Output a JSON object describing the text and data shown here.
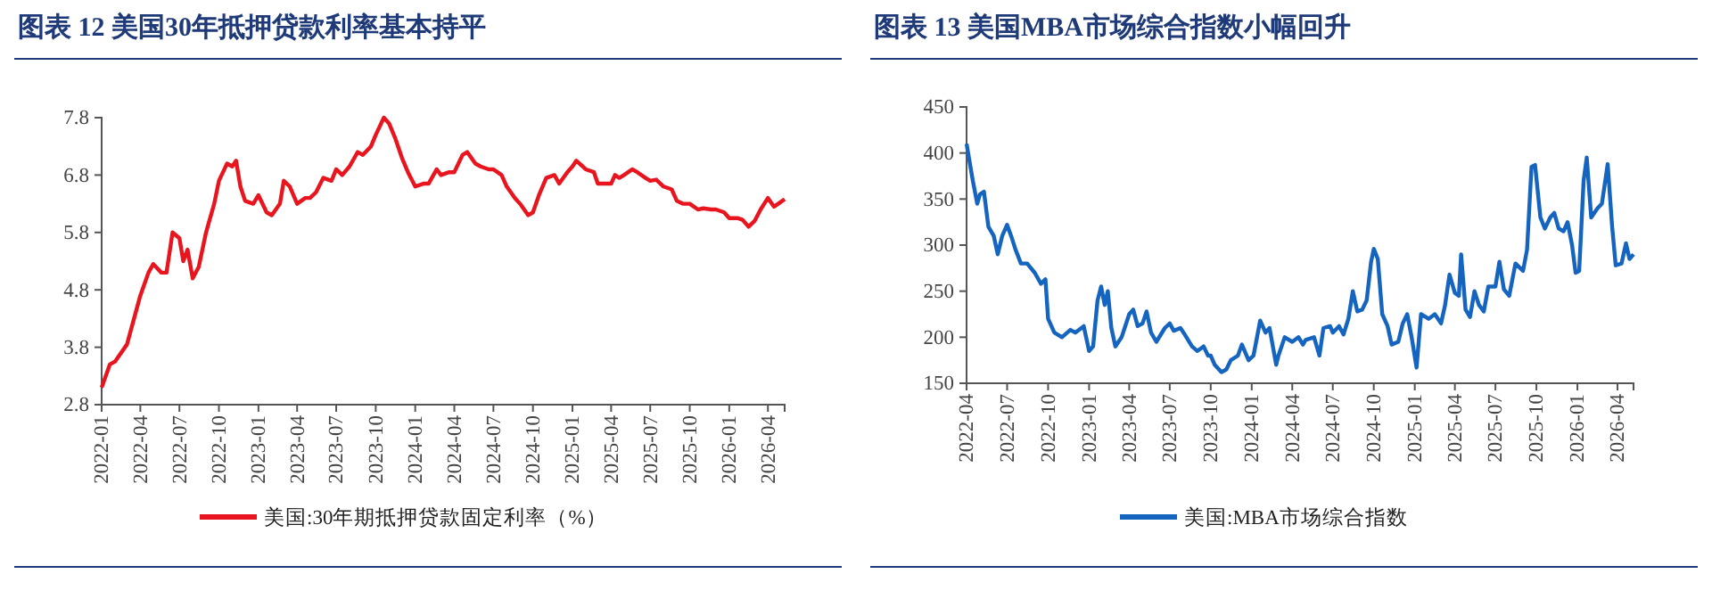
{
  "chart_data": [
    {
      "type": "line",
      "title": "图表 12   美国30年抵押贷款利率基本持平",
      "legend": "bottom",
      "grid": false,
      "xlim": [
        "2022-01-01",
        "2026-05-10"
      ],
      "ylim": [
        2.8,
        7.8
      ],
      "yticks": [
        2.8,
        3.8,
        4.8,
        5.8,
        6.8,
        7.8
      ],
      "xticks": [
        "2022-01",
        "2022-04",
        "2022-07",
        "2022-10",
        "2023-01",
        "2023-04",
        "2023-07",
        "2023-10",
        "2024-01",
        "2024-04",
        "2024-07",
        "2024-10",
        "2025-01",
        "2025-04",
        "2025-07",
        "2025-10",
        "2026-01",
        "2026-04"
      ],
      "x": [
        "2022-01-01",
        "2022-01-20",
        "2022-02-01",
        "2022-03-01",
        "2022-04-01",
        "2022-04-20",
        "2022-05-01",
        "2022-05-20",
        "2022-06-01",
        "2022-06-15",
        "2022-07-01",
        "2022-07-10",
        "2022-07-20",
        "2022-08-01",
        "2022-08-15",
        "2022-09-01",
        "2022-09-20",
        "2022-10-01",
        "2022-10-20",
        "2022-11-01",
        "2022-11-10",
        "2022-11-20",
        "2022-12-01",
        "2022-12-20",
        "2023-01-01",
        "2023-01-20",
        "2023-02-01",
        "2023-02-20",
        "2023-03-01",
        "2023-03-15",
        "2023-04-01",
        "2023-04-20",
        "2023-05-01",
        "2023-05-15",
        "2023-06-01",
        "2023-06-20",
        "2023-07-01",
        "2023-07-15",
        "2023-08-01",
        "2023-08-20",
        "2023-09-01",
        "2023-09-20",
        "2023-10-01",
        "2023-10-20",
        "2023-11-01",
        "2023-11-15",
        "2023-12-01",
        "2023-12-15",
        "2024-01-01",
        "2024-01-20",
        "2024-02-01",
        "2024-02-20",
        "2024-03-01",
        "2024-03-20",
        "2024-04-01",
        "2024-04-20",
        "2024-05-01",
        "2024-05-20",
        "2024-06-01",
        "2024-06-20",
        "2024-07-01",
        "2024-07-20",
        "2024-08-01",
        "2024-08-20",
        "2024-09-01",
        "2024-09-20",
        "2024-10-01",
        "2024-10-15",
        "2024-11-01",
        "2024-11-20",
        "2024-12-01",
        "2024-12-20",
        "2025-01-01",
        "2025-01-10",
        "2025-01-25",
        "2025-02-01",
        "2025-02-20",
        "2025-03-01",
        "2025-03-20",
        "2025-04-01",
        "2025-04-10",
        "2025-04-20",
        "2025-05-01",
        "2025-05-20",
        "2025-06-01",
        "2025-06-20",
        "2025-07-01",
        "2025-07-15",
        "2025-08-01",
        "2025-08-20",
        "2025-09-01",
        "2025-09-15",
        "2025-10-01",
        "2025-10-20",
        "2025-11-01",
        "2025-11-20",
        "2025-12-01",
        "2025-12-20",
        "2026-01-01",
        "2026-01-20",
        "2026-02-01",
        "2026-02-15",
        "2026-03-01",
        "2026-03-15",
        "2026-04-01",
        "2026-04-15",
        "2026-04-25",
        "2026-05-10"
      ],
      "series": [
        {
          "name": "美国:30年期抵押贷款固定利率（%）",
          "color": "#e8141e",
          "values": [
            3.1,
            3.5,
            3.55,
            3.85,
            4.7,
            5.1,
            5.25,
            5.1,
            5.1,
            5.8,
            5.7,
            5.3,
            5.5,
            5.0,
            5.2,
            5.8,
            6.3,
            6.7,
            7.0,
            6.95,
            7.05,
            6.6,
            6.35,
            6.3,
            6.45,
            6.15,
            6.1,
            6.3,
            6.7,
            6.6,
            6.3,
            6.4,
            6.4,
            6.5,
            6.75,
            6.7,
            6.9,
            6.8,
            6.95,
            7.2,
            7.15,
            7.3,
            7.5,
            7.8,
            7.7,
            7.45,
            7.1,
            6.85,
            6.6,
            6.65,
            6.65,
            6.9,
            6.8,
            6.85,
            6.85,
            7.15,
            7.2,
            7.0,
            6.95,
            6.9,
            6.9,
            6.8,
            6.6,
            6.4,
            6.3,
            6.1,
            6.15,
            6.45,
            6.75,
            6.8,
            6.65,
            6.85,
            6.95,
            7.05,
            6.95,
            6.9,
            6.85,
            6.65,
            6.65,
            6.65,
            6.8,
            6.75,
            6.8,
            6.9,
            6.85,
            6.75,
            6.7,
            6.72,
            6.6,
            6.55,
            6.35,
            6.3,
            6.3,
            6.2,
            6.22,
            6.2,
            6.2,
            6.15,
            6.05,
            6.05,
            6.02,
            5.9,
            6.0,
            6.2,
            6.4,
            6.25,
            6.3,
            6.38
          ]
        }
      ]
    },
    {
      "type": "line",
      "title": "图表 13   美国MBA市场综合指数小幅回升",
      "legend": "bottom",
      "grid": false,
      "xlim": [
        "2022-04-01",
        "2026-05-07"
      ],
      "ylim": [
        150,
        450
      ],
      "yticks": [
        150,
        200,
        250,
        300,
        350,
        400,
        450
      ],
      "xticks": [
        "2022-04",
        "2022-07",
        "2022-10",
        "2023-01",
        "2023-04",
        "2023-07",
        "2023-10",
        "2024-01",
        "2024-04",
        "2024-07",
        "2024-10",
        "2025-01",
        "2025-04",
        "2025-07",
        "2025-10",
        "2026-01",
        "2026-04"
      ],
      "x": [
        "2022-04-01",
        "2022-04-15",
        "2022-04-25",
        "2022-05-01",
        "2022-05-10",
        "2022-05-20",
        "2022-06-01",
        "2022-06-10",
        "2022-06-20",
        "2022-07-01",
        "2022-07-10",
        "2022-07-20",
        "2022-08-01",
        "2022-08-15",
        "2022-09-01",
        "2022-09-15",
        "2022-09-25",
        "2022-10-01",
        "2022-10-15",
        "2022-11-01",
        "2022-11-20",
        "2022-12-01",
        "2022-12-20",
        "2023-01-01",
        "2023-01-10",
        "2023-01-20",
        "2023-01-28",
        "2023-02-05",
        "2023-02-12",
        "2023-02-20",
        "2023-03-01",
        "2023-03-15",
        "2023-04-01",
        "2023-04-10",
        "2023-04-20",
        "2023-05-01",
        "2023-05-10",
        "2023-05-20",
        "2023-06-01",
        "2023-06-20",
        "2023-07-01",
        "2023-07-10",
        "2023-07-25",
        "2023-08-01",
        "2023-08-20",
        "2023-09-01",
        "2023-09-15",
        "2023-09-25",
        "2023-10-01",
        "2023-10-10",
        "2023-10-25",
        "2023-11-05",
        "2023-11-15",
        "2023-12-01",
        "2023-12-10",
        "2023-12-25",
        "2024-01-05",
        "2024-01-20",
        "2024-02-01",
        "2024-02-10",
        "2024-02-25",
        "2024-03-01",
        "2024-03-15",
        "2024-04-01",
        "2024-04-15",
        "2024-04-25",
        "2024-05-01",
        "2024-05-20",
        "2024-06-01",
        "2024-06-10",
        "2024-06-25",
        "2024-07-01",
        "2024-07-15",
        "2024-07-25",
        "2024-08-05",
        "2024-08-15",
        "2024-08-25",
        "2024-09-05",
        "2024-09-15",
        "2024-09-25",
        "2024-10-01",
        "2024-10-10",
        "2024-10-20",
        "2024-11-01",
        "2024-11-10",
        "2024-11-25",
        "2024-12-05",
        "2024-12-15",
        "2024-12-25",
        "2025-01-05",
        "2025-01-15",
        "2025-02-01",
        "2025-02-15",
        "2025-03-01",
        "2025-03-10",
        "2025-03-20",
        "2025-04-01",
        "2025-04-10",
        "2025-04-15",
        "2025-04-25",
        "2025-05-05",
        "2025-05-15",
        "2025-05-25",
        "2025-06-05",
        "2025-06-15",
        "2025-07-01",
        "2025-07-10",
        "2025-07-20",
        "2025-08-01",
        "2025-08-15",
        "2025-09-01",
        "2025-09-10",
        "2025-09-20",
        "2025-09-28",
        "2025-10-10",
        "2025-10-20",
        "2025-11-01",
        "2025-11-10",
        "2025-11-20",
        "2025-12-01",
        "2025-12-10",
        "2025-12-20",
        "2025-12-28",
        "2026-01-05",
        "2026-01-15",
        "2026-01-22",
        "2026-02-01",
        "2026-02-15",
        "2026-02-25",
        "2026-03-10",
        "2026-03-20",
        "2026-03-28",
        "2026-04-10",
        "2026-04-20",
        "2026-04-28",
        "2026-05-07"
      ],
      "series": [
        {
          "name": "美国:MBA市场综合指数",
          "color": "#1565c0",
          "values": [
            410,
            370,
            345,
            355,
            358,
            320,
            310,
            290,
            310,
            322,
            310,
            295,
            280,
            280,
            270,
            258,
            263,
            220,
            205,
            200,
            208,
            205,
            212,
            185,
            190,
            240,
            255,
            235,
            250,
            210,
            190,
            200,
            225,
            230,
            212,
            215,
            228,
            205,
            195,
            210,
            215,
            207,
            210,
            205,
            190,
            185,
            190,
            180,
            180,
            170,
            162,
            165,
            175,
            180,
            192,
            175,
            180,
            218,
            205,
            210,
            170,
            180,
            200,
            195,
            200,
            192,
            197,
            200,
            180,
            210,
            212,
            205,
            212,
            203,
            220,
            250,
            228,
            230,
            240,
            282,
            296,
            285,
            225,
            212,
            192,
            195,
            215,
            225,
            200,
            167,
            225,
            220,
            225,
            215,
            235,
            268,
            248,
            245,
            290,
            230,
            222,
            250,
            235,
            228,
            255,
            255,
            282,
            252,
            245,
            280,
            272,
            295,
            385,
            387,
            330,
            318,
            330,
            335,
            318,
            315,
            325,
            300,
            270,
            272,
            370,
            395,
            330,
            340,
            345,
            388,
            320,
            278,
            280,
            302,
            285,
            290
          ]
        }
      ]
    }
  ]
}
